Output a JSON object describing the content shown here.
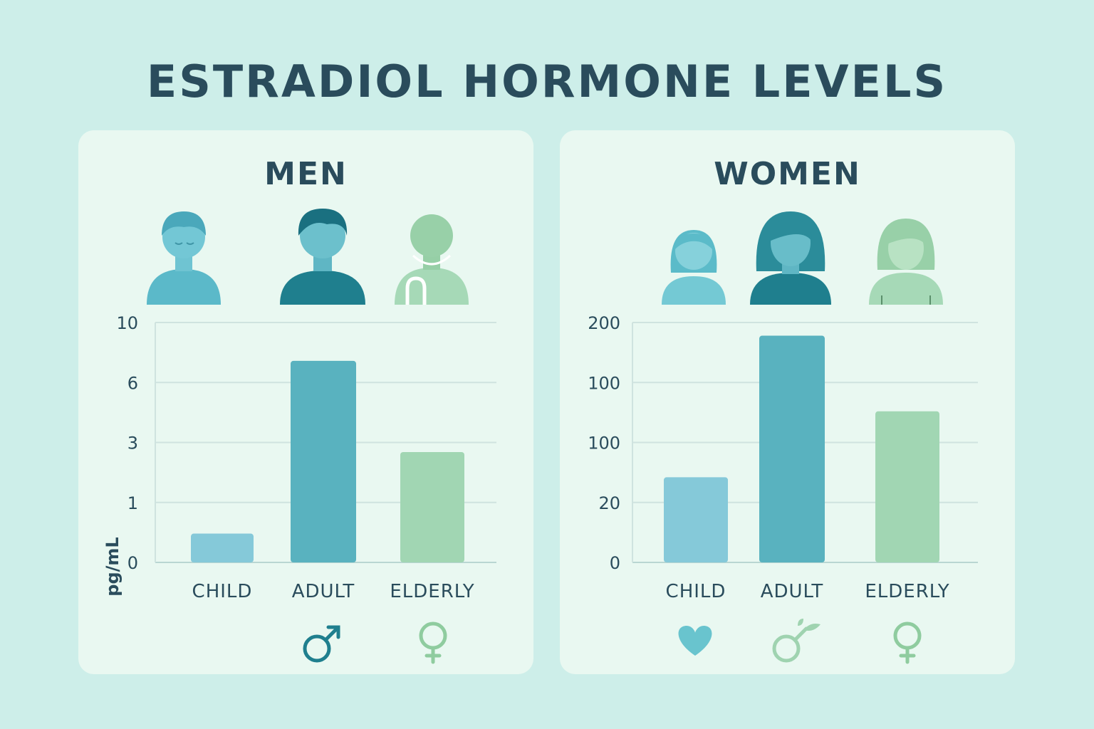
{
  "title": "ESTRADIOL HORMONE LEVELS",
  "colors": {
    "background": "#cdeee9",
    "panel": "#e9f8f1",
    "text": "#2a4c5c",
    "child": "#85c9d9",
    "adult": "#59b2bf",
    "elderly": "#a1d6b3"
  },
  "chart_data": [
    {
      "type": "bar",
      "title": "MEN",
      "ylabel": "pg/mL",
      "xlabel": "",
      "categories": [
        "CHILD",
        "ADULT",
        "ELDERLY"
      ],
      "values": [
        1.2,
        8.4,
        4.6
      ],
      "yticks": [
        "0",
        "1",
        "3",
        "6",
        "10"
      ],
      "ylim": [
        0,
        10
      ],
      "grid": true,
      "figures": [
        "boy-icon",
        "man-icon",
        "elderly-man-icon"
      ],
      "symbols": [
        null,
        "male-symbol-icon",
        "female-symbol-icon"
      ]
    },
    {
      "type": "bar",
      "title": "WOMEN",
      "ylabel": "",
      "xlabel": "",
      "categories": [
        "CHILD",
        "ADULT",
        "ELDERLY"
      ],
      "values": [
        71,
        189,
        126
      ],
      "yticks": [
        "0",
        "20",
        "100",
        "100",
        "200"
      ],
      "ylim": [
        0,
        200
      ],
      "grid": true,
      "figures": [
        "girl-icon",
        "woman-icon",
        "elderly-woman-icon"
      ],
      "symbols": [
        "heart-icon",
        "male-symbol-leaf-icon",
        "female-symbol-icon"
      ]
    }
  ]
}
